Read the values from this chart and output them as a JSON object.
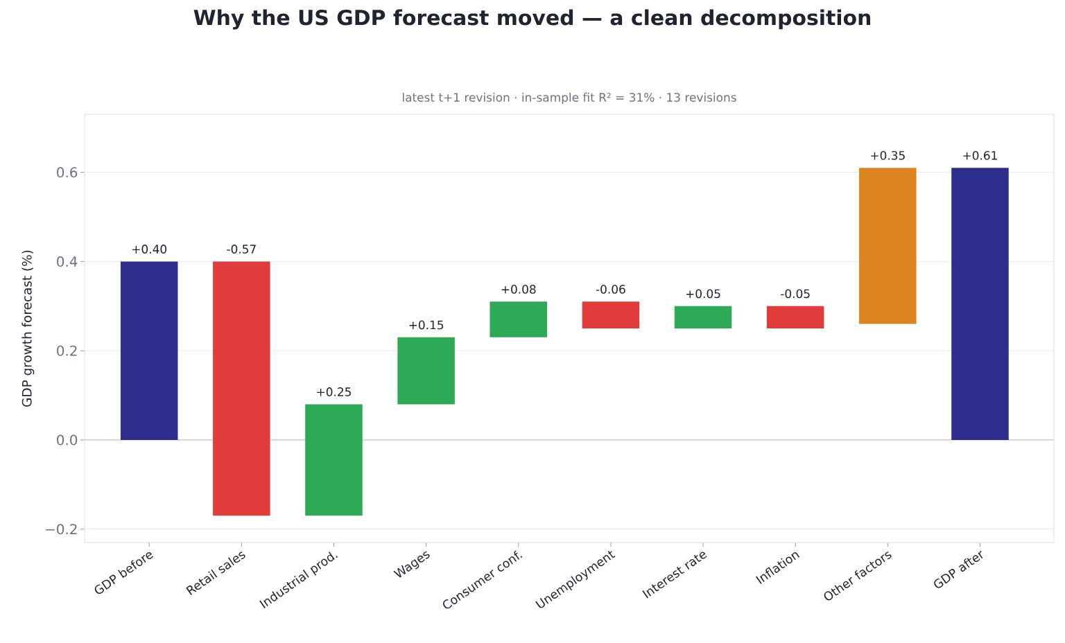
{
  "chart_data": {
    "type": "bar",
    "title": "Why the US GDP forecast moved — a clean decomposition",
    "subtitle": "latest t+1 revision · in-sample fit R² = 31% · 13 revisions",
    "ylabel": "GDP growth forecast (%)",
    "categories": [
      "GDP before",
      "Retail sales",
      "Industrial prod.",
      "Wages",
      "Consumer conf.",
      "Unemployment",
      "Interest rate",
      "Inflation",
      "Other factors",
      "GDP after"
    ],
    "values": [
      0.4,
      -0.57,
      0.25,
      0.15,
      0.08,
      -0.06,
      0.05,
      -0.05,
      0.35,
      0.61
    ],
    "base": [
      0,
      0.4,
      -0.17,
      0.08,
      0.23,
      0.31,
      0.25,
      0.3,
      0.26,
      0
    ],
    "colors": [
      "#2e2e8f",
      "#e03c3c",
      "#2eaa57",
      "#2eaa57",
      "#2eaa57",
      "#e03c3c",
      "#2eaa57",
      "#e03c3c",
      "#dc8420",
      "#2e2e8f"
    ],
    "value_labels": [
      "+0.40",
      "-0.57",
      "+0.25",
      "+0.15",
      "+0.08",
      "-0.06",
      "+0.05",
      "-0.05",
      "+0.35",
      "+0.61"
    ],
    "ylim": [
      -0.23,
      0.73
    ],
    "yticks": [
      {
        "value": -0.2,
        "label": "−0.2"
      },
      {
        "value": 0,
        "label": "0.0"
      },
      {
        "value": 0.2,
        "label": "0.2"
      },
      {
        "value": 0.4,
        "label": "0.4"
      },
      {
        "value": 0.6,
        "label": "0.6"
      }
    ],
    "ref_lines": [
      {
        "axis": "y",
        "value": 0,
        "color": "#c8c8cc"
      }
    ],
    "grid": "y"
  }
}
